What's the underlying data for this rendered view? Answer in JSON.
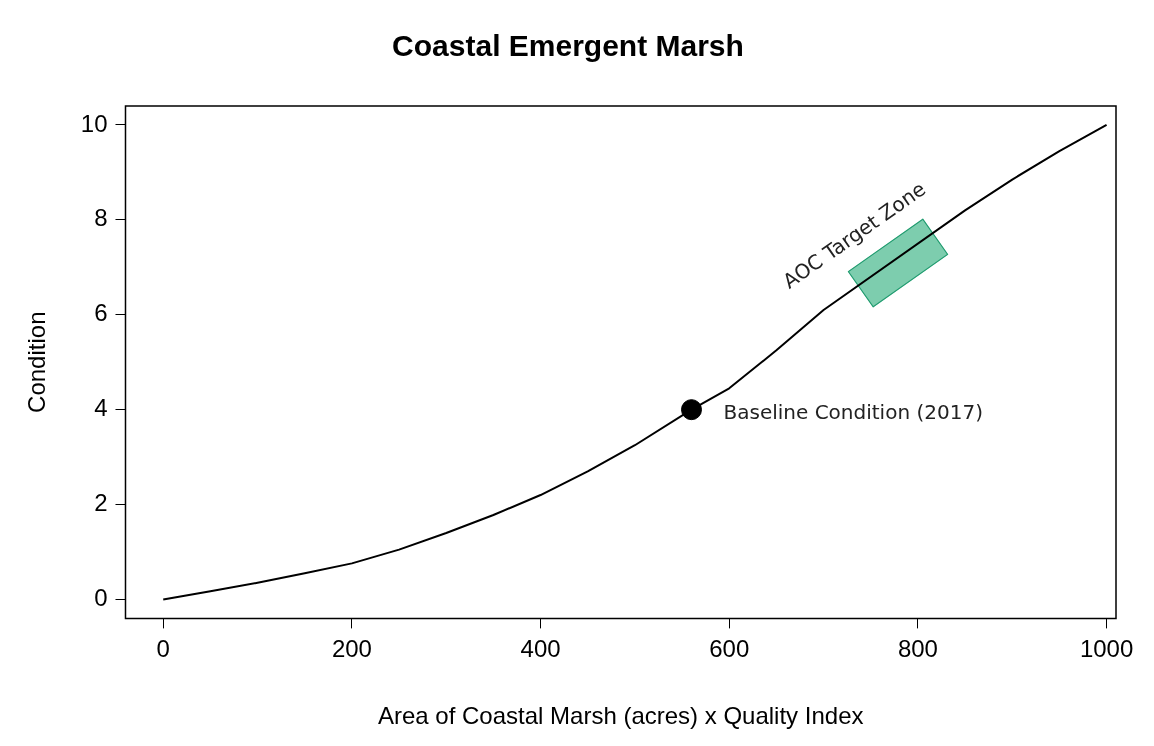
{
  "chart_data": {
    "type": "line",
    "title": "Coastal Emergent Marsh",
    "xlabel": "Area of Coastal Marsh (acres) x Quality Index",
    "ylabel": "Condition",
    "xlim": [
      -40,
      1010
    ],
    "xticks": [
      0,
      200,
      400,
      600,
      800,
      1000
    ],
    "ylim": [
      -0.4,
      10.4
    ],
    "yticks": [
      0,
      2,
      4,
      6,
      8,
      10
    ],
    "grid": false,
    "legend": false,
    "series": [
      {
        "type": "line",
        "color": "#000000",
        "x": [
          0,
          50,
          100,
          150,
          200,
          250,
          300,
          350,
          400,
          450,
          500,
          560,
          600,
          650,
          700,
          850,
          900,
          950,
          1000
        ],
        "values": [
          0,
          0.17,
          0.35,
          0.55,
          0.76,
          1.05,
          1.4,
          1.78,
          2.2,
          2.7,
          3.25,
          4,
          4.45,
          5.25,
          6.1,
          8.2,
          8.85,
          9.45,
          10
        ]
      },
      {
        "type": "scatter",
        "color": "#000000",
        "marker": "circle",
        "x": [
          560
        ],
        "values": [
          4
        ]
      }
    ],
    "annotations": [
      {
        "text": "AOC Target Zone",
        "x": 779,
        "y": 7.1
      },
      {
        "text": "Baseline Condition (2017)",
        "x": 560,
        "y": 4
      }
    ]
  }
}
